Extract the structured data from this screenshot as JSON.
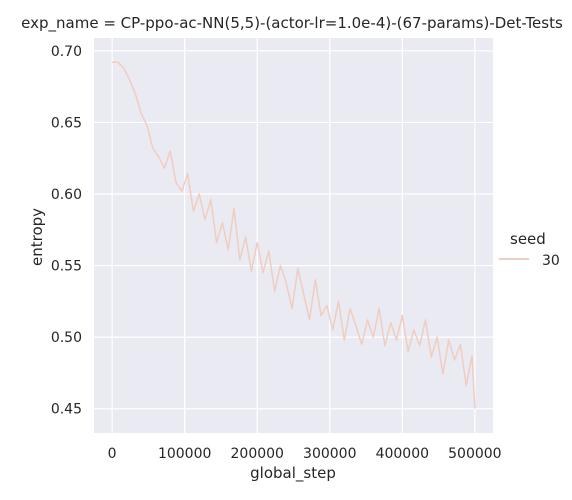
{
  "chart_data": {
    "type": "line",
    "title": "exp_name = CP-ppo-ac-NN(5,5)-(actor-lr=1.0e-4)-(67-params)-Det-Tests",
    "xlabel": "global_step",
    "ylabel": "entropy",
    "xlim": [
      -25000,
      525000
    ],
    "ylim": [
      0.433,
      0.709
    ],
    "x_ticks": [
      0,
      100000,
      200000,
      300000,
      400000,
      500000
    ],
    "x_tick_labels": [
      "0",
      "100000",
      "200000",
      "300000",
      "400000",
      "500000"
    ],
    "y_ticks": [
      0.45,
      0.5,
      0.55,
      0.6,
      0.65,
      0.7
    ],
    "y_tick_labels": [
      "0.45",
      "0.50",
      "0.55",
      "0.60",
      "0.65",
      "0.70"
    ],
    "grid": true,
    "legend": {
      "title": "seed",
      "placement": "right",
      "entries": [
        "30"
      ]
    },
    "series": [
      {
        "name": "30",
        "color": "#f0cdc1",
        "x": [
          0,
          8000,
          16000,
          24000,
          32000,
          40000,
          48000,
          56000,
          64000,
          72000,
          80000,
          88000,
          96000,
          104000,
          112000,
          120000,
          128000,
          136000,
          144000,
          152000,
          160000,
          168000,
          176000,
          184000,
          192000,
          200000,
          208000,
          216000,
          224000,
          232000,
          240000,
          248000,
          256000,
          264000,
          272000,
          280000,
          288000,
          296000,
          304000,
          312000,
          320000,
          328000,
          336000,
          344000,
          352000,
          360000,
          368000,
          376000,
          384000,
          392000,
          400000,
          408000,
          416000,
          424000,
          432000,
          440000,
          448000,
          456000,
          464000,
          472000,
          480000,
          488000,
          496000,
          500000
        ],
        "y": [
          0.692,
          0.692,
          0.688,
          0.68,
          0.67,
          0.656,
          0.648,
          0.632,
          0.626,
          0.618,
          0.63,
          0.608,
          0.602,
          0.614,
          0.588,
          0.6,
          0.582,
          0.596,
          0.566,
          0.58,
          0.561,
          0.59,
          0.554,
          0.57,
          0.546,
          0.566,
          0.545,
          0.56,
          0.532,
          0.55,
          0.538,
          0.52,
          0.548,
          0.53,
          0.512,
          0.54,
          0.515,
          0.522,
          0.505,
          0.525,
          0.498,
          0.52,
          0.508,
          0.495,
          0.512,
          0.5,
          0.52,
          0.494,
          0.51,
          0.498,
          0.515,
          0.49,
          0.505,
          0.494,
          0.512,
          0.486,
          0.5,
          0.474,
          0.498,
          0.484,
          0.495,
          0.466,
          0.487,
          0.45
        ]
      }
    ]
  }
}
